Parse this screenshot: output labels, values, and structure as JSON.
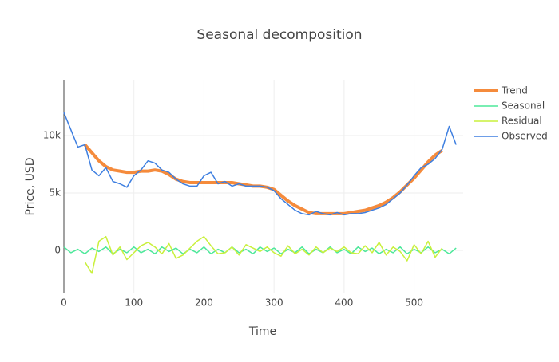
{
  "chart_data": {
    "type": "line",
    "title": "Seasonal decomposition",
    "x_label": "Time",
    "y_label": "Price, USD",
    "x": [
      0,
      10,
      20,
      30,
      40,
      50,
      60,
      70,
      80,
      90,
      100,
      110,
      120,
      130,
      140,
      150,
      160,
      170,
      180,
      190,
      200,
      210,
      220,
      230,
      240,
      250,
      260,
      270,
      280,
      290,
      300,
      310,
      320,
      330,
      340,
      350,
      360,
      370,
      380,
      390,
      400,
      410,
      420,
      430,
      440,
      450,
      460,
      470,
      480,
      490,
      500,
      510,
      520,
      530,
      540,
      550,
      560
    ],
    "series": [
      {
        "name": "Trend",
        "color": "#f58b3c",
        "width": 4,
        "values": [
          null,
          null,
          null,
          9200,
          8500,
          7800,
          7300,
          7000,
          6900,
          6800,
          6800,
          6900,
          6900,
          7000,
          6900,
          6600,
          6200,
          6000,
          5900,
          5900,
          5900,
          5900,
          5900,
          5900,
          5900,
          5800,
          5700,
          5600,
          5600,
          5500,
          5300,
          4800,
          4300,
          3900,
          3600,
          3300,
          3200,
          3200,
          3200,
          3200,
          3200,
          3300,
          3400,
          3500,
          3700,
          3900,
          4200,
          4600,
          5100,
          5700,
          6300,
          7000,
          7700,
          8300,
          8700,
          null,
          null
        ]
      },
      {
        "name": "Seasonal",
        "color": "#4de89a",
        "width": 1.5,
        "values": [
          300,
          -200,
          100,
          -300,
          200,
          -100,
          300,
          -300,
          100,
          -200,
          300,
          -200,
          100,
          -300,
          300,
          -100,
          200,
          -300,
          100,
          -200,
          300,
          -300,
          100,
          -200,
          300,
          -200,
          100,
          -300,
          300,
          -100,
          200,
          -300,
          100,
          -200,
          300,
          -300,
          100,
          -200,
          300,
          -200,
          100,
          -300,
          300,
          -100,
          200,
          -300,
          100,
          -200,
          300,
          -300,
          100,
          -200,
          300,
          -200,
          100,
          -300,
          200
        ]
      },
      {
        "name": "Residual",
        "color": "#c9f03c",
        "width": 1.5,
        "values": [
          null,
          null,
          null,
          -1000,
          -2000,
          800,
          1200,
          -400,
          300,
          -800,
          -200,
          400,
          700,
          300,
          -300,
          600,
          -700,
          -400,
          200,
          800,
          1200,
          400,
          -300,
          -200,
          300,
          -400,
          500,
          200,
          -100,
          300,
          -200,
          -500,
          400,
          -300,
          100,
          -400,
          300,
          -200,
          200,
          -100,
          300,
          -200,
          -300,
          400,
          -200,
          700,
          -400,
          300,
          -100,
          -900,
          500,
          -300,
          800,
          -600,
          200,
          null,
          null
        ]
      },
      {
        "name": "Observed",
        "color": "#3e7fe0",
        "width": 1.5,
        "values": [
          12000,
          10500,
          9000,
          9200,
          7000,
          6500,
          7200,
          6000,
          5800,
          5500,
          6500,
          7000,
          7800,
          7600,
          7000,
          6800,
          6200,
          5800,
          5600,
          5600,
          6500,
          6800,
          5800,
          6000,
          5600,
          5800,
          5600,
          5600,
          5600,
          5500,
          5200,
          4500,
          4000,
          3500,
          3200,
          3100,
          3400,
          3200,
          3100,
          3300,
          3100,
          3200,
          3200,
          3300,
          3500,
          3700,
          4000,
          4500,
          5000,
          5700,
          6500,
          7200,
          7500,
          8000,
          8800,
          10800,
          9200
        ]
      }
    ],
    "xlim": [
      0,
      570
    ],
    "xticks": [
      0,
      100,
      200,
      300,
      400,
      500
    ],
    "ylim": [
      -3750,
      14860
    ],
    "yticks": [
      0,
      {
        "value": 5000,
        "label": "5k"
      },
      {
        "value": 10000,
        "label": "10k"
      }
    ],
    "grid": true,
    "legend": "right"
  }
}
